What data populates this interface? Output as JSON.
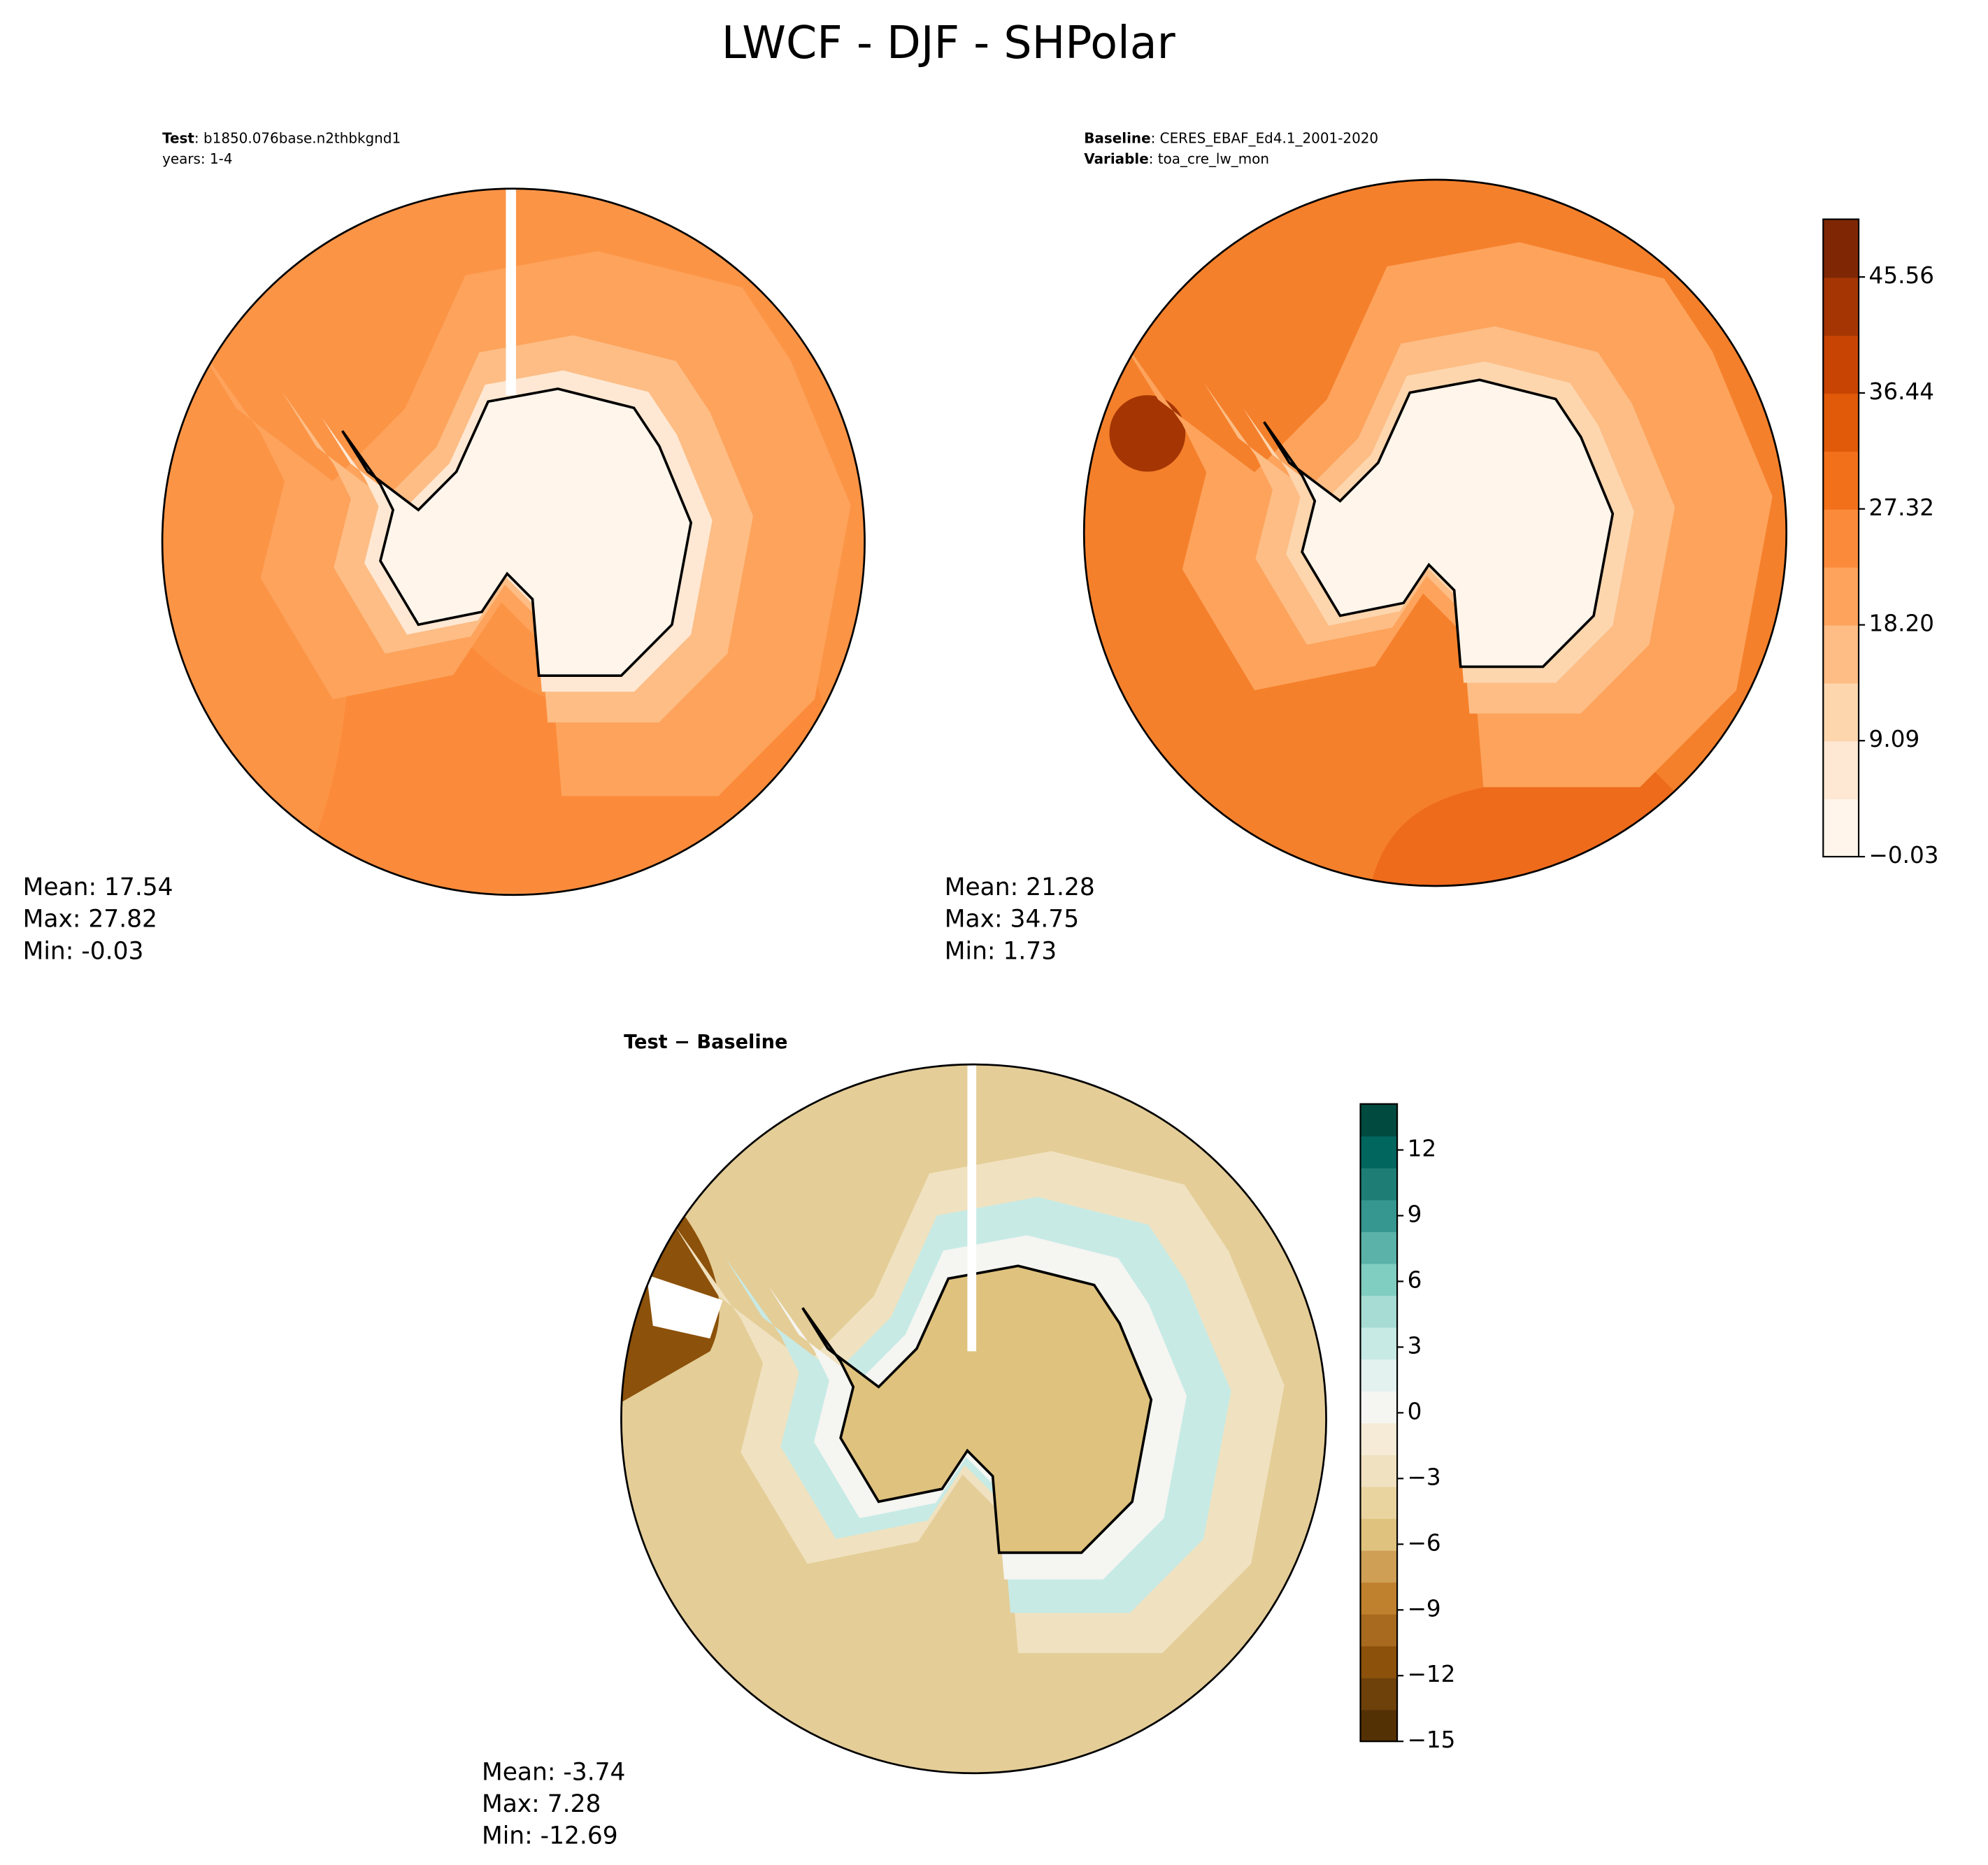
{
  "title": "LWCF - DJF - SHPolar",
  "panels": [
    {
      "header": [
        {
          "key": "Test",
          "text": ": b1850.076base.n2thbkgnd1"
        },
        {
          "text": "years: 1-4"
        }
      ],
      "stats": [
        "Mean: 17.54",
        "Max: 27.82",
        "Min: -0.03"
      ]
    },
    {
      "header": [
        {
          "key": "Baseline",
          "text": ": CERES_EBAF_Ed4.1_2001-2020"
        },
        {
          "key": "Variable",
          "text": ": toa_cre_lw_mon"
        }
      ],
      "stats": [
        "Mean: 21.28",
        "Max: 34.75",
        "Min:  1.73"
      ]
    },
    {
      "header": [
        {
          "key": "Test − Baseline"
        }
      ],
      "stats": [
        "Mean: -3.74",
        "Max:  7.28",
        "Min: -12.69"
      ]
    }
  ],
  "colorbars": [
    {
      "lim": [
        -0.03,
        50.1
      ],
      "ticks": [
        {
          "value": -0.03,
          "label": "−0.03"
        },
        9.09,
        {
          "value": 18.2,
          "label": "18.20"
        },
        27.32,
        36.44,
        45.56
      ],
      "colors": [
        "#fff5eb",
        "#fee8d3",
        "#fdd6ae",
        "#fdbd85",
        "#fda35c",
        "#fb8b3a",
        "#f3701b",
        "#e05a0a",
        "#c84402",
        "#a53603",
        "#7f2704"
      ]
    },
    {
      "lim": [
        -15,
        14.1
      ],
      "ticks": [
        {
          "value": -15,
          "label": "−15"
        },
        {
          "value": -12,
          "label": "−12"
        },
        {
          "value": -9,
          "label": "−9"
        },
        {
          "value": -6,
          "label": "−6"
        },
        {
          "value": -3,
          "label": "−3"
        },
        0,
        3,
        6,
        9,
        12
      ],
      "colors": [
        "#543005",
        "#6e400a",
        "#8c510a",
        "#a86a1f",
        "#bf812d",
        "#cf9f55",
        "#dfc27d",
        "#e9d4a0",
        "#f0e2c0",
        "#f6ebd7",
        "#f5f5f1",
        "#e3f2ef",
        "#c7eae5",
        "#a6dcd3",
        "#80cdc1",
        "#5ab2a8",
        "#35978f",
        "#1e7d74",
        "#01665e",
        "#004a40"
      ]
    }
  ]
}
